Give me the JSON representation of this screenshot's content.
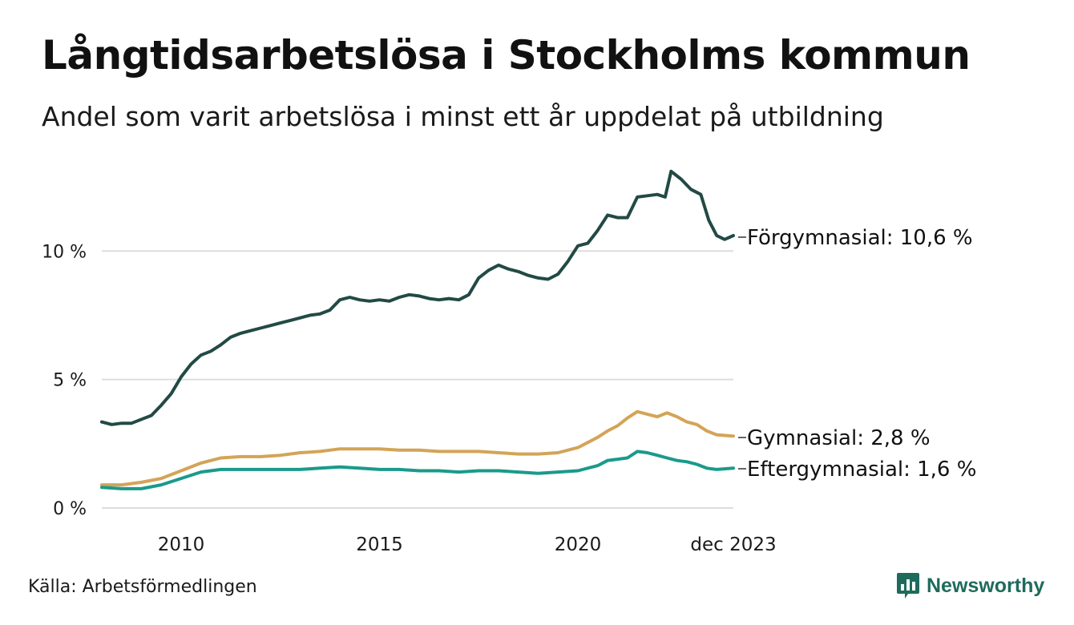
{
  "title": "Långtidsarbetslösa i Stockholms kommun",
  "subtitle": "Andel som varit arbetslösa i minst ett år uppdelat på utbildning",
  "source": "Källa: Arbetsförmedlingen",
  "brand": {
    "name": "Newsworthy",
    "icon": "bar-chart-icon",
    "color": "#1e6b5c"
  },
  "chart_data": {
    "type": "line",
    "x_unit": "fractional year",
    "xlim": [
      2008.0,
      2023.92
    ],
    "ylim": [
      0,
      13.5
    ],
    "y_ticks": [
      {
        "value": 0,
        "label": "0 %"
      },
      {
        "value": 5,
        "label": "5 %"
      },
      {
        "value": 10,
        "label": "10 %"
      }
    ],
    "x_ticks": [
      {
        "value": 2010,
        "label": "2010"
      },
      {
        "value": 2015,
        "label": "2015"
      },
      {
        "value": 2020,
        "label": "2020"
      },
      {
        "value": 2023.92,
        "label": "dec 2023"
      }
    ],
    "grid": true,
    "series": [
      {
        "name": "Förgymnasial",
        "end_label": "Förgymnasial: 10,6 %",
        "color": "#224a45",
        "points": [
          [
            2008.0,
            3.35
          ],
          [
            2008.25,
            3.25
          ],
          [
            2008.5,
            3.3
          ],
          [
            2008.75,
            3.3
          ],
          [
            2009.0,
            3.45
          ],
          [
            2009.25,
            3.6
          ],
          [
            2009.5,
            4.0
          ],
          [
            2009.75,
            4.45
          ],
          [
            2010.0,
            5.1
          ],
          [
            2010.25,
            5.6
          ],
          [
            2010.5,
            5.95
          ],
          [
            2010.75,
            6.1
          ],
          [
            2011.0,
            6.35
          ],
          [
            2011.25,
            6.65
          ],
          [
            2011.5,
            6.8
          ],
          [
            2011.75,
            6.9
          ],
          [
            2012.0,
            7.0
          ],
          [
            2012.25,
            7.1
          ],
          [
            2012.5,
            7.2
          ],
          [
            2012.75,
            7.3
          ],
          [
            2013.0,
            7.4
          ],
          [
            2013.25,
            7.5
          ],
          [
            2013.5,
            7.55
          ],
          [
            2013.75,
            7.7
          ],
          [
            2014.0,
            8.1
          ],
          [
            2014.25,
            8.2
          ],
          [
            2014.5,
            8.1
          ],
          [
            2014.75,
            8.05
          ],
          [
            2015.0,
            8.1
          ],
          [
            2015.25,
            8.05
          ],
          [
            2015.5,
            8.2
          ],
          [
            2015.75,
            8.3
          ],
          [
            2016.0,
            8.25
          ],
          [
            2016.25,
            8.15
          ],
          [
            2016.5,
            8.1
          ],
          [
            2016.75,
            8.15
          ],
          [
            2017.0,
            8.1
          ],
          [
            2017.25,
            8.3
          ],
          [
            2017.5,
            8.95
          ],
          [
            2017.75,
            9.25
          ],
          [
            2018.0,
            9.45
          ],
          [
            2018.25,
            9.3
          ],
          [
            2018.5,
            9.2
          ],
          [
            2018.75,
            9.05
          ],
          [
            2019.0,
            8.95
          ],
          [
            2019.25,
            8.9
          ],
          [
            2019.5,
            9.1
          ],
          [
            2019.75,
            9.6
          ],
          [
            2020.0,
            10.2
          ],
          [
            2020.25,
            10.3
          ],
          [
            2020.5,
            10.8
          ],
          [
            2020.75,
            11.4
          ],
          [
            2021.0,
            11.3
          ],
          [
            2021.25,
            11.3
          ],
          [
            2021.5,
            12.1
          ],
          [
            2021.75,
            12.15
          ],
          [
            2022.0,
            12.2
          ],
          [
            2022.2,
            12.1
          ],
          [
            2022.35,
            13.1
          ],
          [
            2022.6,
            12.8
          ],
          [
            2022.85,
            12.4
          ],
          [
            2023.1,
            12.2
          ],
          [
            2023.3,
            11.2
          ],
          [
            2023.5,
            10.6
          ],
          [
            2023.7,
            10.45
          ],
          [
            2023.92,
            10.6
          ]
        ]
      },
      {
        "name": "Gymnasial",
        "end_label": "Gymnasial:  2,8 %",
        "color": "#d3a457",
        "points": [
          [
            2008.0,
            0.9
          ],
          [
            2008.5,
            0.9
          ],
          [
            2009.0,
            1.0
          ],
          [
            2009.5,
            1.15
          ],
          [
            2010.0,
            1.45
          ],
          [
            2010.5,
            1.75
          ],
          [
            2011.0,
            1.95
          ],
          [
            2011.5,
            2.0
          ],
          [
            2012.0,
            2.0
          ],
          [
            2012.5,
            2.05
          ],
          [
            2013.0,
            2.15
          ],
          [
            2013.5,
            2.2
          ],
          [
            2014.0,
            2.3
          ],
          [
            2014.5,
            2.3
          ],
          [
            2015.0,
            2.3
          ],
          [
            2015.5,
            2.25
          ],
          [
            2016.0,
            2.25
          ],
          [
            2016.5,
            2.2
          ],
          [
            2017.0,
            2.2
          ],
          [
            2017.5,
            2.2
          ],
          [
            2018.0,
            2.15
          ],
          [
            2018.5,
            2.1
          ],
          [
            2019.0,
            2.1
          ],
          [
            2019.5,
            2.15
          ],
          [
            2020.0,
            2.35
          ],
          [
            2020.5,
            2.75
          ],
          [
            2020.75,
            3.0
          ],
          [
            2021.0,
            3.2
          ],
          [
            2021.25,
            3.5
          ],
          [
            2021.5,
            3.75
          ],
          [
            2021.75,
            3.65
          ],
          [
            2022.0,
            3.55
          ],
          [
            2022.25,
            3.7
          ],
          [
            2022.5,
            3.55
          ],
          [
            2022.75,
            3.35
          ],
          [
            2023.0,
            3.25
          ],
          [
            2023.25,
            3.0
          ],
          [
            2023.5,
            2.85
          ],
          [
            2023.92,
            2.8
          ]
        ]
      },
      {
        "name": "Eftergymnasial",
        "end_label": "Eftergymnasial:  1,6 %",
        "color": "#1a9a8b",
        "points": [
          [
            2008.0,
            0.8
          ],
          [
            2008.5,
            0.75
          ],
          [
            2009.0,
            0.75
          ],
          [
            2009.5,
            0.9
          ],
          [
            2010.0,
            1.15
          ],
          [
            2010.5,
            1.4
          ],
          [
            2011.0,
            1.5
          ],
          [
            2011.5,
            1.5
          ],
          [
            2012.0,
            1.5
          ],
          [
            2012.5,
            1.5
          ],
          [
            2013.0,
            1.5
          ],
          [
            2013.5,
            1.55
          ],
          [
            2014.0,
            1.6
          ],
          [
            2014.5,
            1.55
          ],
          [
            2015.0,
            1.5
          ],
          [
            2015.5,
            1.5
          ],
          [
            2016.0,
            1.45
          ],
          [
            2016.5,
            1.45
          ],
          [
            2017.0,
            1.4
          ],
          [
            2017.5,
            1.45
          ],
          [
            2018.0,
            1.45
          ],
          [
            2018.5,
            1.4
          ],
          [
            2019.0,
            1.35
          ],
          [
            2019.5,
            1.4
          ],
          [
            2020.0,
            1.45
          ],
          [
            2020.5,
            1.65
          ],
          [
            2020.75,
            1.85
          ],
          [
            2021.0,
            1.9
          ],
          [
            2021.25,
            1.95
          ],
          [
            2021.5,
            2.2
          ],
          [
            2021.75,
            2.15
          ],
          [
            2022.0,
            2.05
          ],
          [
            2022.25,
            1.95
          ],
          [
            2022.5,
            1.85
          ],
          [
            2022.75,
            1.8
          ],
          [
            2023.0,
            1.7
          ],
          [
            2023.25,
            1.55
          ],
          [
            2023.5,
            1.5
          ],
          [
            2023.92,
            1.55
          ]
        ]
      }
    ]
  }
}
